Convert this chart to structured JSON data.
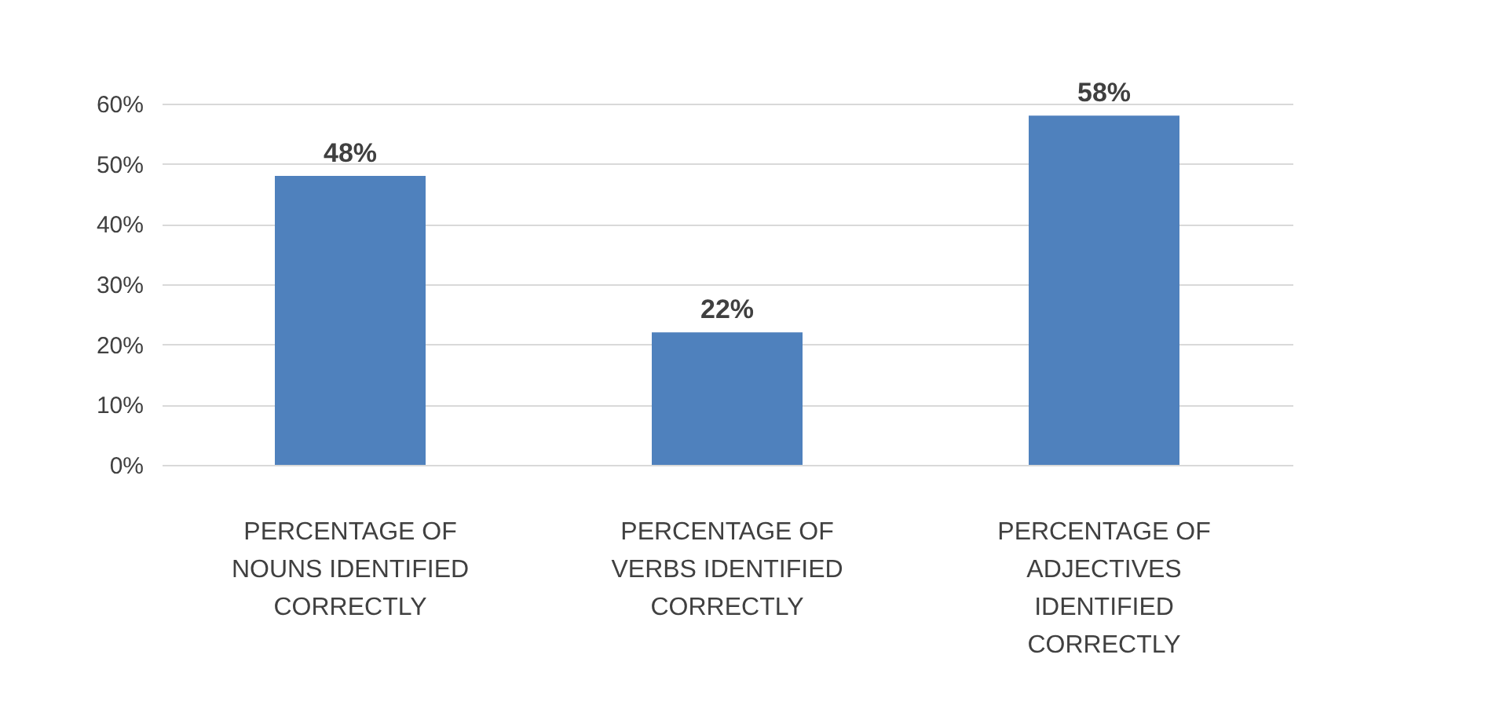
{
  "chart_data": {
    "type": "bar",
    "categories": [
      "PERCENTAGE OF NOUNS IDENTIFIED CORRECTLY",
      "PERCENTAGE OF VERBS IDENTIFIED CORRECTLY",
      "PERCENTAGE OF ADJECTIVES IDENTIFIED CORRECTLY"
    ],
    "values": [
      48,
      22,
      58
    ],
    "value_labels": [
      "48%",
      "22%",
      "58%"
    ],
    "color": "#4f81bd",
    "ylim": [
      0,
      60
    ],
    "yticks": [
      {
        "value": 0,
        "label": "0%"
      },
      {
        "value": 10,
        "label": "10%"
      },
      {
        "value": 20,
        "label": "20%"
      },
      {
        "value": 30,
        "label": "30%"
      },
      {
        "value": 40,
        "label": "40%"
      },
      {
        "value": 50,
        "label": "50%"
      },
      {
        "value": 60,
        "label": "60%"
      }
    ],
    "grid": "y"
  }
}
